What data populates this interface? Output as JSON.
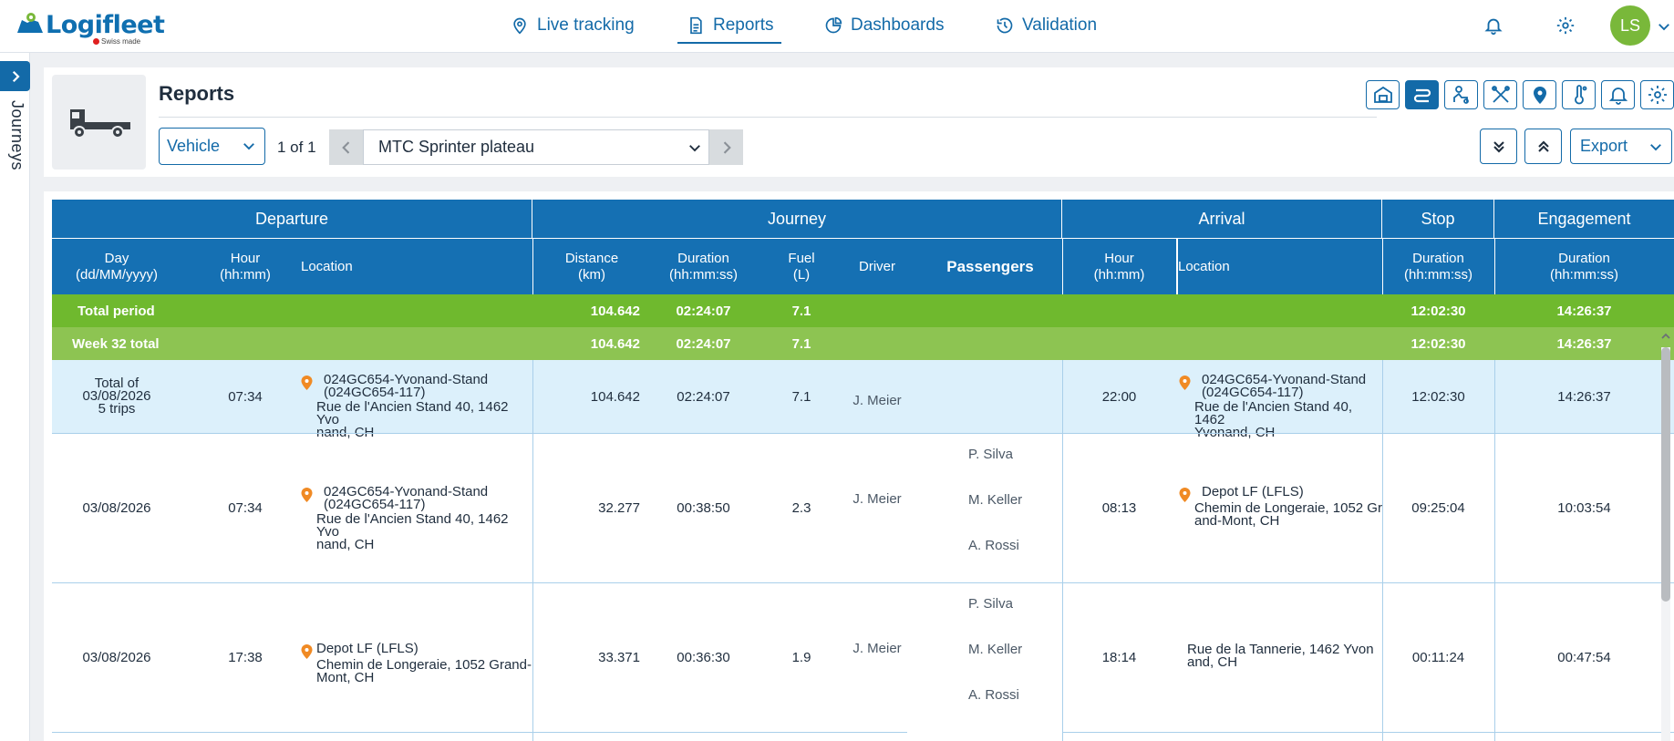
{
  "brand": {
    "name": "Logifleet",
    "tagline": "Swiss made"
  },
  "nav": [
    {
      "label": "Live tracking",
      "icon": "map-pin-icon"
    },
    {
      "label": "Reports",
      "icon": "document-icon",
      "active": true
    },
    {
      "label": "Dashboards",
      "icon": "pie-chart-icon"
    },
    {
      "label": "Validation",
      "icon": "history-icon"
    }
  ],
  "user": {
    "initials": "LS",
    "color": "#79b83a"
  },
  "side_tab": {
    "label": "Journeys"
  },
  "header": {
    "title": "Reports",
    "tools": [
      "garage-icon",
      "route-icon",
      "driver-icon",
      "tools-icon",
      "location-icon",
      "thermometer-icon",
      "bell-icon",
      "settings-icon"
    ],
    "active_tool": "route-icon",
    "selector": "Vehicle",
    "pager": "1 of 1",
    "vehicle": "MTC Sprinter plateau",
    "export": "Export"
  },
  "colors": {
    "accent": "#136aa8",
    "header_blue": "#1570b3",
    "total_green": "#6fb92e",
    "week_green": "#8dc452",
    "highlight_row": "#dcf0fb",
    "pin_orange": "#f08a24"
  },
  "table": {
    "groups": [
      "Departure",
      "Journey",
      "Arrival",
      "Stop",
      "Engagement"
    ],
    "columns": {
      "dep_day": "Day\n(dd/MM/yyyy)",
      "dep_hour": "Hour\n(hh:mm)",
      "dep_loc": "Location",
      "distance": "Distance\n(km)",
      "duration": "Duration\n(hh:mm:ss)",
      "fuel": "Fuel\n(L)",
      "driver": "Driver",
      "passengers": "Passengers",
      "arr_hour": "Hour\n(hh:mm)",
      "arr_loc": "Location",
      "stop": "Duration\n(hh:mm:ss)",
      "engagement": "Duration\n(hh:mm:ss)"
    },
    "total_period": {
      "label": "Total period",
      "distance": "104.642",
      "duration": "02:24:07",
      "fuel": "7.1",
      "stop": "12:02:30",
      "engagement": "14:26:37"
    },
    "week_total": {
      "label": "Week 32 total",
      "distance": "104.642",
      "duration": "02:24:07",
      "fuel": "7.1",
      "stop": "12:02:30",
      "engagement": "14:26:37"
    },
    "rows": [
      {
        "day": "Total of\n03/08/2026\n5 trips",
        "hour": "07:34",
        "dep_name": "024GC654-Yvonand-Stand\n(024GC654-117)",
        "dep_addr": "Rue de l'Ancien Stand 40, 1462 Yvo\nnand, CH",
        "distance": "104.642",
        "duration": "02:24:07",
        "fuel": "7.1",
        "driver": "J. Meier",
        "passengers": [],
        "arr_hour": "22:00",
        "arr_name": "024GC654-Yvonand-Stand\n(024GC654-117)",
        "arr_addr": "Rue de l'Ancien Stand 40, 1462\nYvonand, CH",
        "stop": "12:02:30",
        "engagement": "14:26:37"
      },
      {
        "day": "03/08/2026",
        "hour": "07:34",
        "dep_name": "024GC654-Yvonand-Stand\n(024GC654-117)",
        "dep_addr": "Rue de l'Ancien Stand 40, 1462 Yvo\nnand, CH",
        "distance": "32.277",
        "duration": "00:38:50",
        "fuel": "2.3",
        "driver": "J. Meier",
        "passengers": [
          "P. Silva",
          "M. Keller",
          "A. Rossi"
        ],
        "arr_hour": "08:13",
        "arr_name": "Depot LF (LFLS)",
        "arr_addr": "Chemin de Longeraie, 1052 Gr\nand-Mont, CH",
        "stop": "09:25:04",
        "engagement": "10:03:54"
      },
      {
        "day": "03/08/2026",
        "hour": "17:38",
        "dep_name": "Depot LF (LFLS)",
        "dep_addr": "Chemin de Longeraie, 1052 Grand-\nMont, CH",
        "distance": "33.371",
        "duration": "00:36:30",
        "fuel": "1.9",
        "driver": "J. Meier",
        "passengers": [
          "P. Silva",
          "M. Keller",
          "A. Rossi"
        ],
        "arr_hour": "18:14",
        "arr_name": "",
        "arr_addr": "Rue de la Tannerie, 1462 Yvon\nand, CH",
        "stop": "00:11:24",
        "engagement": "00:47:54"
      }
    ]
  }
}
